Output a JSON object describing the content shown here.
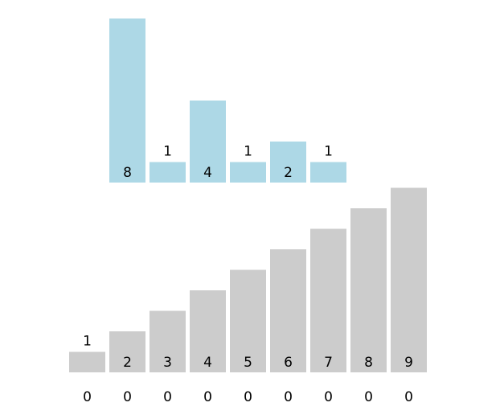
{
  "chart_data": [
    {
      "type": "bar",
      "values": [
        8,
        1,
        4,
        1,
        2,
        1
      ],
      "labels": [
        "8",
        "1",
        "4",
        "1",
        "2",
        "1"
      ],
      "color": "#add8e6"
    },
    {
      "type": "bar",
      "values": [
        1,
        2,
        3,
        4,
        5,
        6,
        7,
        8,
        9
      ],
      "labels": [
        "1",
        "2",
        "3",
        "4",
        "5",
        "6",
        "7",
        "8",
        "9"
      ],
      "color": "#cccccc"
    },
    {
      "type": "table",
      "values": [
        0,
        0,
        0,
        0,
        0,
        0,
        0,
        0,
        0
      ],
      "labels": [
        "0",
        "0",
        "0",
        "0",
        "0",
        "0",
        "0",
        "0",
        "0"
      ]
    }
  ]
}
